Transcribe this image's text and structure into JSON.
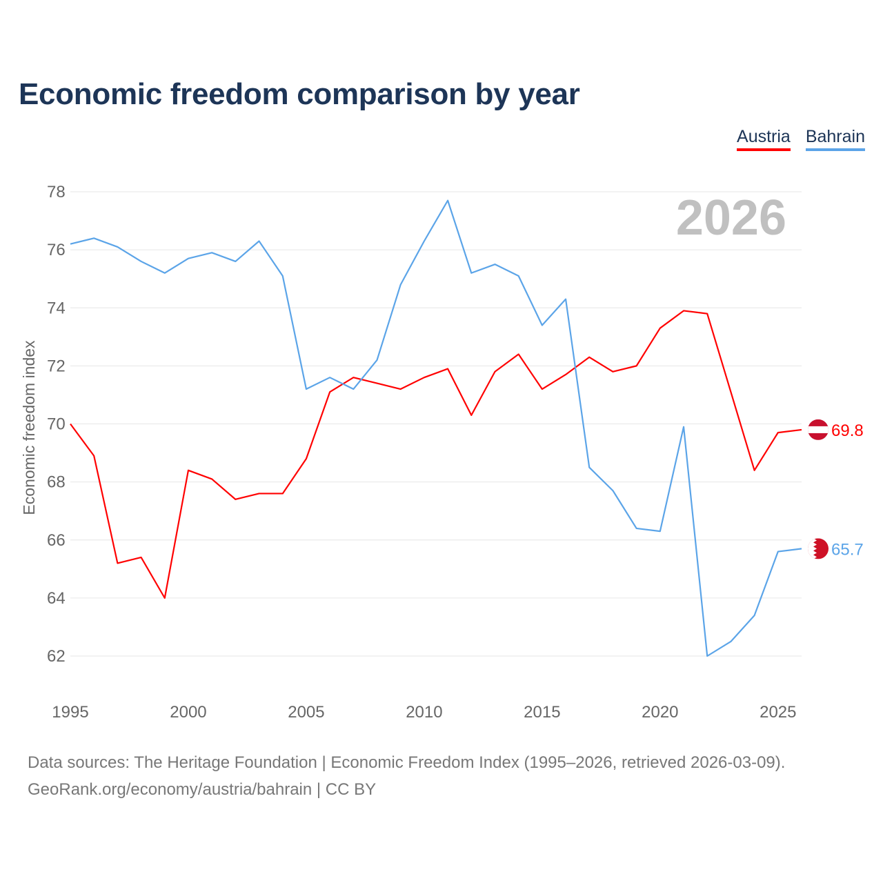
{
  "title": "Economic freedom comparison by year",
  "footer": {
    "line1": "Data sources: The Heritage Foundation | Economic Freedom Index (1995–2026, retrieved 2026-03-09).",
    "line2": "GeoRank.org/economy/austria/bahrain | CC BY"
  },
  "chart_data": {
    "type": "line",
    "title": "Economic freedom comparison by year",
    "xlabel": "",
    "ylabel": "Economic freedom index",
    "year_label": "2026",
    "x": [
      1995,
      1996,
      1997,
      1998,
      1999,
      2000,
      2001,
      2002,
      2003,
      2004,
      2005,
      2006,
      2007,
      2008,
      2009,
      2010,
      2011,
      2012,
      2013,
      2014,
      2015,
      2016,
      2017,
      2018,
      2019,
      2020,
      2021,
      2022,
      2023,
      2024,
      2025,
      2026
    ],
    "xlim": [
      1995,
      2026
    ],
    "ylim": [
      61,
      79
    ],
    "xticks": [
      "1995",
      "2000",
      "2005",
      "2010",
      "2015",
      "2020",
      "2025"
    ],
    "yticks": [
      "62",
      "64",
      "66",
      "68",
      "70",
      "72",
      "74",
      "76",
      "78"
    ],
    "grid": true,
    "legend_position": "top-right",
    "series": [
      {
        "name": "Austria",
        "color": "#ff0000",
        "end_label": "69.8",
        "flag": "austria-flag",
        "values": [
          70.0,
          68.9,
          65.2,
          65.4,
          64.0,
          68.4,
          68.1,
          67.4,
          67.6,
          67.6,
          68.8,
          71.1,
          71.6,
          71.4,
          71.2,
          71.6,
          71.9,
          70.3,
          71.8,
          72.4,
          71.2,
          71.7,
          72.3,
          71.8,
          72.0,
          73.3,
          73.9,
          73.8,
          71.1,
          68.4,
          69.7,
          69.8
        ]
      },
      {
        "name": "Bahrain",
        "color": "#5ba4e8",
        "end_label": "65.7",
        "flag": "bahrain-flag",
        "values": [
          76.2,
          76.4,
          76.1,
          75.6,
          75.2,
          75.7,
          75.9,
          75.6,
          76.3,
          75.1,
          71.2,
          71.6,
          71.2,
          72.2,
          74.8,
          76.3,
          77.7,
          75.2,
          75.5,
          75.1,
          73.4,
          74.3,
          68.5,
          67.7,
          66.4,
          66.3,
          69.9,
          62.0,
          62.5,
          63.4,
          65.6,
          65.7
        ]
      }
    ]
  }
}
